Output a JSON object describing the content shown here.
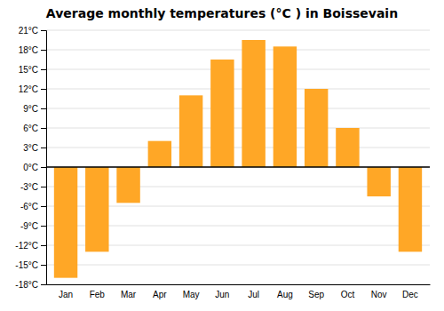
{
  "chart_data": {
    "type": "bar",
    "title": "Average monthly temperatures (°C ) in Boissevain",
    "categories": [
      "Jan",
      "Feb",
      "Mar",
      "Apr",
      "May",
      "Jun",
      "Jul",
      "Aug",
      "Sep",
      "Oct",
      "Nov",
      "Dec"
    ],
    "values": [
      -17,
      -13,
      -5.5,
      4,
      11,
      16.5,
      19.5,
      18.5,
      12,
      6,
      -4.5,
      -13
    ],
    "color": "#FFA726",
    "ylim": [
      -18,
      21
    ],
    "yticks": [
      {
        "value": -18,
        "label": "-18°C"
      },
      {
        "value": -15,
        "label": "-15°C"
      },
      {
        "value": -12,
        "label": "-12°C"
      },
      {
        "value": -9,
        "label": "-9°C"
      },
      {
        "value": -6,
        "label": "-6°C"
      },
      {
        "value": -3,
        "label": "-3°C"
      },
      {
        "value": 0,
        "label": "0°C"
      },
      {
        "value": 3,
        "label": "3°C"
      },
      {
        "value": 6,
        "label": "6°C"
      },
      {
        "value": 9,
        "label": "9°C"
      },
      {
        "value": 12,
        "label": "12°C"
      },
      {
        "value": 15,
        "label": "15°C"
      },
      {
        "value": 18,
        "label": "18°C"
      },
      {
        "value": 21,
        "label": "21°C"
      }
    ],
    "grid": true
  }
}
